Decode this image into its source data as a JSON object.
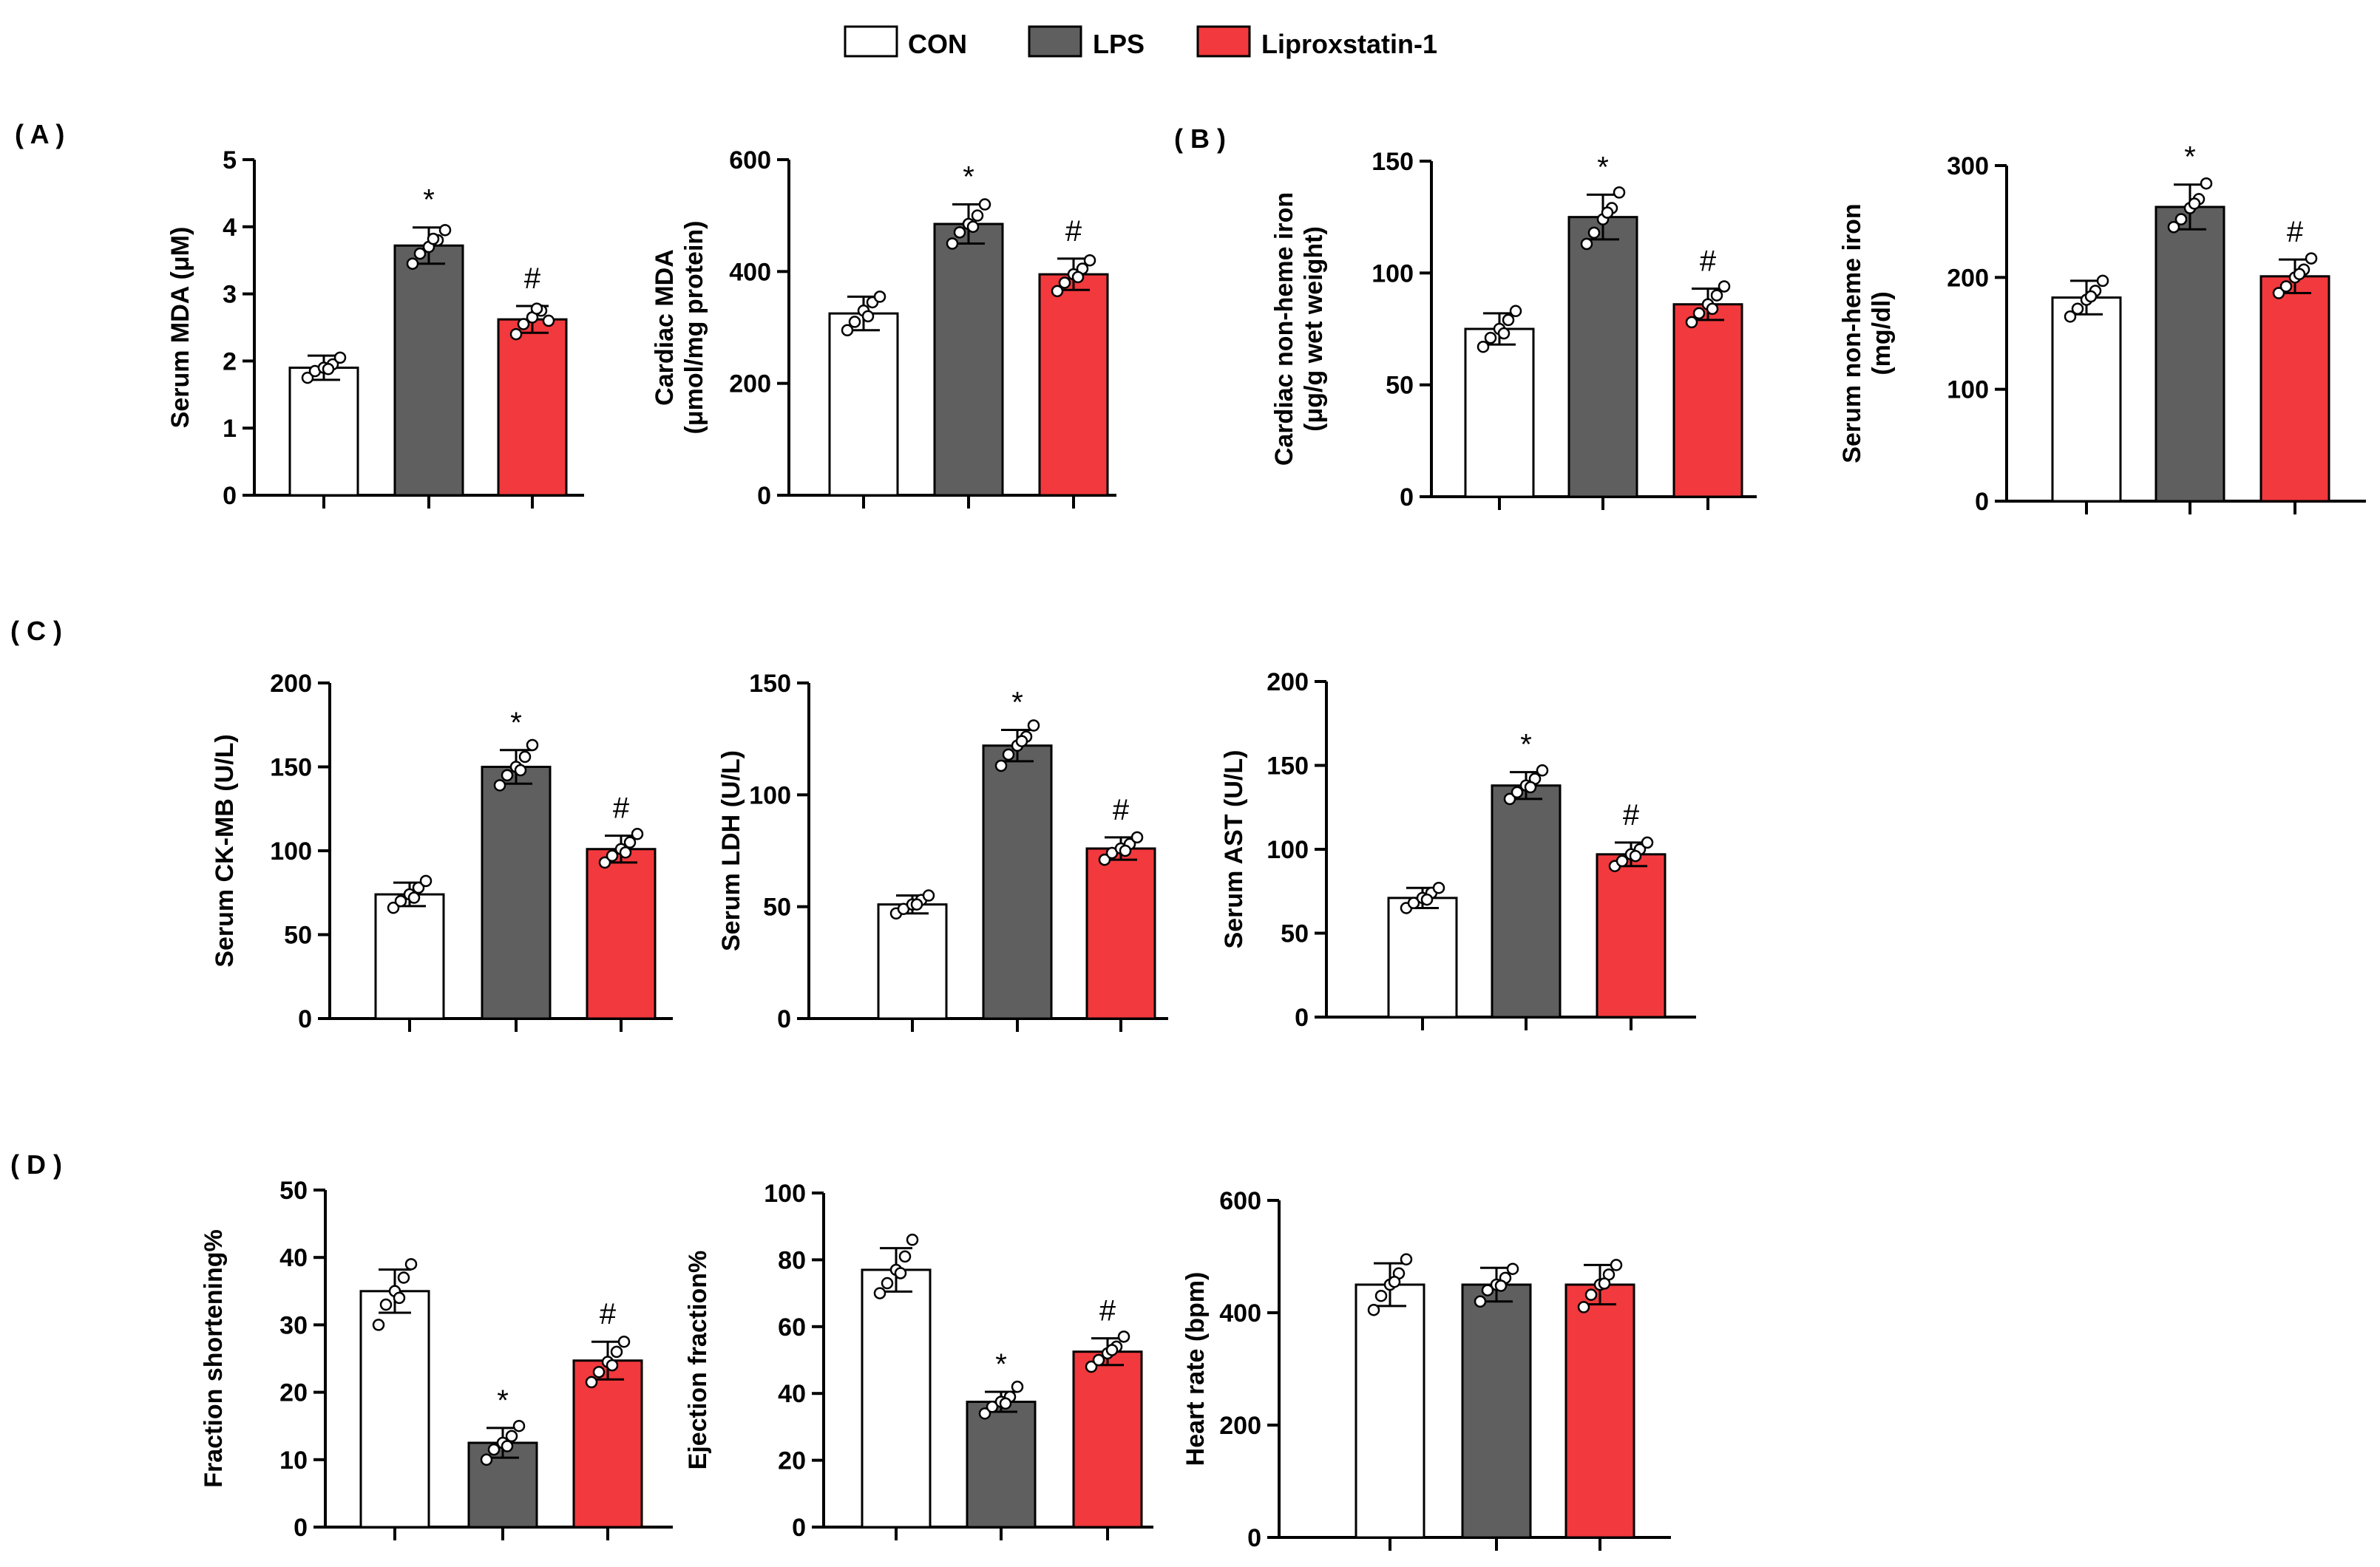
{
  "legend": [
    {
      "label": "CON",
      "color": "#ffffff"
    },
    {
      "label": "LPS",
      "color": "#5f5f5f"
    },
    {
      "label": "Liproxstatin-1",
      "color": "#f2393d"
    }
  ],
  "panel_labels": [
    "( A )",
    "( B )",
    "( C )",
    "( D )"
  ],
  "chart_data": [
    {
      "type": "bar",
      "panel": "A",
      "ylabel": [
        "Serum MDA (μM)"
      ],
      "ylim": [
        0,
        5
      ],
      "yticks": [
        "0",
        "1",
        "2",
        "3",
        "4",
        "5"
      ],
      "categories": [
        "CON",
        "LPS",
        "Liproxstatin-1"
      ],
      "values": [
        1.9,
        3.72,
        2.62
      ],
      "errors": [
        0.18,
        0.27,
        0.2
      ],
      "significance": [
        "",
        "*",
        "#"
      ],
      "points": [
        [
          1.75,
          1.85,
          1.9,
          1.95,
          2.05,
          1.88
        ],
        [
          3.45,
          3.6,
          3.7,
          3.8,
          3.95,
          3.82
        ],
        [
          2.4,
          2.55,
          2.65,
          2.75,
          2.6,
          2.78
        ]
      ]
    },
    {
      "type": "bar",
      "panel": "A",
      "ylabel": [
        "Cardiac MDA",
        "(μmol/mg protein)"
      ],
      "ylim": [
        0,
        600
      ],
      "yticks": [
        "0",
        "200",
        "400",
        "600"
      ],
      "categories": [
        "CON",
        "LPS",
        "Liproxstatin-1"
      ],
      "values": [
        325,
        485,
        395
      ],
      "errors": [
        30,
        35,
        28
      ],
      "significance": [
        "",
        "*",
        "#"
      ],
      "points": [
        [
          295,
          310,
          330,
          345,
          355,
          320
        ],
        [
          450,
          470,
          485,
          500,
          520,
          480
        ],
        [
          365,
          380,
          395,
          405,
          420,
          390
        ]
      ]
    },
    {
      "type": "bar",
      "panel": "B",
      "ylabel": [
        "Cardiac non-heme iron",
        "(μg/g wet weight)"
      ],
      "ylim": [
        0,
        150
      ],
      "yticks": [
        "0",
        "50",
        "100",
        "150"
      ],
      "categories": [
        "CON",
        "LPS",
        "Liproxstatin-1"
      ],
      "values": [
        75,
        125,
        86
      ],
      "errors": [
        7,
        10,
        7
      ],
      "significance": [
        "",
        "*",
        "#"
      ],
      "points": [
        [
          67,
          71,
          75,
          79,
          83,
          73
        ],
        [
          113,
          118,
          124,
          129,
          136,
          127
        ],
        [
          78,
          82,
          86,
          90,
          94,
          84
        ]
      ]
    },
    {
      "type": "bar",
      "panel": "B",
      "ylabel": [
        "Serum non-heme iron",
        "(mg/dl)"
      ],
      "ylim": [
        0,
        300
      ],
      "yticks": [
        "0",
        "100",
        "200",
        "300"
      ],
      "categories": [
        "CON",
        "LPS",
        "Liproxstatin-1"
      ],
      "values": [
        182,
        263,
        201
      ],
      "errors": [
        15,
        20,
        15
      ],
      "significance": [
        "",
        "*",
        "#"
      ],
      "points": [
        [
          165,
          172,
          180,
          188,
          197,
          183
        ],
        [
          245,
          252,
          262,
          270,
          284,
          266
        ],
        [
          186,
          192,
          200,
          207,
          217,
          203
        ]
      ]
    },
    {
      "type": "bar",
      "panel": "C",
      "ylabel": [
        "Serum CK-MB (U/L)"
      ],
      "ylim": [
        0,
        200
      ],
      "yticks": [
        "0",
        "50",
        "100",
        "150",
        "200"
      ],
      "categories": [
        "CON",
        "LPS",
        "Liproxstatin-1"
      ],
      "values": [
        74,
        150,
        101
      ],
      "errors": [
        7,
        10,
        8
      ],
      "significance": [
        "",
        "*",
        "#"
      ],
      "points": [
        [
          66,
          70,
          74,
          78,
          82,
          72
        ],
        [
          139,
          145,
          150,
          156,
          163,
          148
        ],
        [
          93,
          97,
          101,
          105,
          110,
          99
        ]
      ]
    },
    {
      "type": "bar",
      "panel": "C",
      "ylabel": [
        "Serum LDH (U/L)"
      ],
      "ylim": [
        0,
        150
      ],
      "yticks": [
        "0",
        "50",
        "100",
        "150"
      ],
      "categories": [
        "CON",
        "LPS",
        "Liproxstatin-1"
      ],
      "values": [
        51,
        122,
        76
      ],
      "errors": [
        4,
        7,
        5
      ],
      "significance": [
        "",
        "*",
        "#"
      ],
      "points": [
        [
          47,
          49,
          51,
          53,
          55,
          51
        ],
        [
          113,
          118,
          122,
          126,
          131,
          124
        ],
        [
          71,
          74,
          76,
          78,
          81,
          75
        ]
      ]
    },
    {
      "type": "bar",
      "panel": "C",
      "ylabel": [
        "Serum AST (U/L)"
      ],
      "ylim": [
        0,
        200
      ],
      "yticks": [
        "0",
        "50",
        "100",
        "150",
        "200"
      ],
      "categories": [
        "CON",
        "LPS",
        "Liproxstatin-1"
      ],
      "values": [
        71,
        138,
        97
      ],
      "errors": [
        6,
        8,
        7
      ],
      "significance": [
        "",
        "*",
        "#"
      ],
      "points": [
        [
          65,
          68,
          71,
          74,
          77,
          70
        ],
        [
          130,
          134,
          138,
          142,
          147,
          137
        ],
        [
          90,
          93,
          97,
          100,
          104,
          96
        ]
      ]
    },
    {
      "type": "bar",
      "panel": "D",
      "ylabel": [
        "Fraction shortening%"
      ],
      "ylim": [
        0,
        50
      ],
      "yticks": [
        "0",
        "10",
        "20",
        "30",
        "40",
        "50"
      ],
      "categories": [
        "CON",
        "LPS",
        "Liproxstatin-1"
      ],
      "values": [
        35,
        12.5,
        24.7
      ],
      "errors": [
        3.2,
        2.2,
        2.8
      ],
      "significance": [
        "",
        "*",
        "#"
      ],
      "points": [
        [
          30,
          33,
          35,
          37,
          39,
          34
        ],
        [
          10,
          11.5,
          12.5,
          13.5,
          15,
          12
        ],
        [
          21.5,
          23,
          24.5,
          26,
          27.5,
          24
        ]
      ]
    },
    {
      "type": "bar",
      "panel": "D",
      "ylabel": [
        "Ejection fraction%"
      ],
      "ylim": [
        0,
        100
      ],
      "yticks": [
        "0",
        "20",
        "40",
        "60",
        "80",
        "100"
      ],
      "categories": [
        "CON",
        "LPS",
        "Liproxstatin-1"
      ],
      "values": [
        77,
        37.5,
        52.5
      ],
      "errors": [
        6.5,
        3,
        4
      ],
      "significance": [
        "",
        "*",
        "#"
      ],
      "points": [
        [
          70,
          73,
          77,
          81,
          86,
          76
        ],
        [
          34,
          36,
          37.5,
          39,
          42,
          37
        ],
        [
          48,
          50,
          52,
          54,
          57,
          53
        ]
      ]
    },
    {
      "type": "bar",
      "panel": "D",
      "ylabel": [
        "Heart rate (bpm)"
      ],
      "ylim": [
        0,
        600
      ],
      "yticks": [
        "0",
        "200",
        "400",
        "600"
      ],
      "categories": [
        "CON",
        "LPS",
        "Liproxstatin-1"
      ],
      "values": [
        450,
        450,
        450
      ],
      "errors": [
        38,
        30,
        35
      ],
      "significance": [
        "",
        "",
        ""
      ],
      "points": [
        [
          405,
          430,
          450,
          470,
          495,
          455
        ],
        [
          420,
          440,
          450,
          462,
          478,
          448
        ],
        [
          410,
          432,
          450,
          468,
          485,
          452
        ]
      ]
    }
  ]
}
